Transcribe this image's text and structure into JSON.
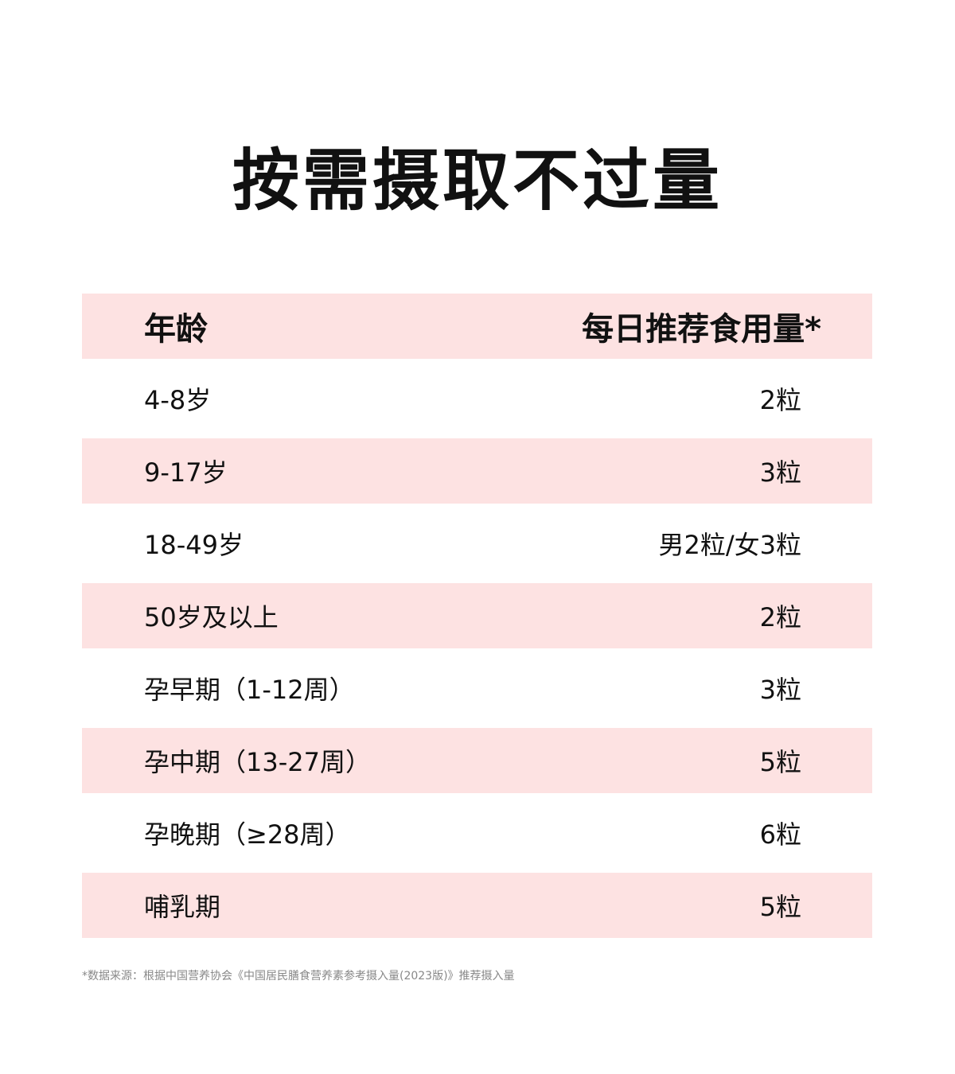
{
  "title": "按需摄取不过量",
  "table": {
    "headers": [
      "年龄",
      "每日推荐食用量*"
    ],
    "rows": [
      {
        "age": "4-8岁",
        "dose": "2粒"
      },
      {
        "age": "9-17岁",
        "dose": "3粒"
      },
      {
        "age": "18-49岁",
        "dose": "男2粒/女3粒"
      },
      {
        "age": "50岁及以上",
        "dose": "2粒"
      },
      {
        "age": "孕早期（1-12周）",
        "dose": "3粒"
      },
      {
        "age": "孕中期（13-27周）",
        "dose": "5粒"
      },
      {
        "age": "孕晚期（≥28周）",
        "dose": "6粒"
      },
      {
        "age": "哺乳期",
        "dose": "5粒"
      }
    ]
  },
  "footnote": "*数据来源：根据中国营养协会《中国居民膳食营养素参考摄入量(2023版)》推荐摄入量",
  "colors": {
    "row_highlight": "#fde2e2",
    "text": "#111111"
  }
}
